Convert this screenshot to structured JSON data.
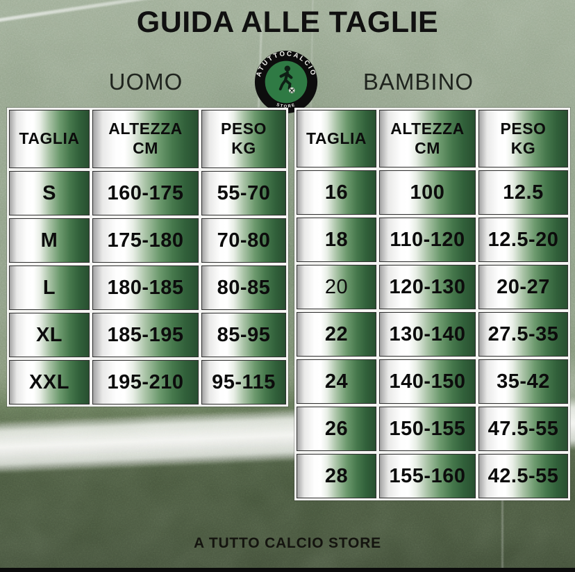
{
  "title": "GUIDA ALLE TAGLIE",
  "footer": "A TUTTO CALCIO STORE",
  "sections": {
    "uomo": {
      "label": "UOMO"
    },
    "bambino": {
      "label": "BAMBINO"
    }
  },
  "logo": {
    "ring_text_top": "ATUTTOCALCIO",
    "ring_text_bottom": "STORE",
    "icon": "soccer-player-icon",
    "ring_color": "#0d0d0d",
    "inner_color": "#2f7a44",
    "text_color": "#f5f5f0"
  },
  "tables": {
    "uomo": {
      "headers": [
        [
          "TAGLIA"
        ],
        [
          "ALTEZZA",
          "CM"
        ],
        [
          "PESO",
          "KG"
        ]
      ],
      "rows": [
        {
          "cells": [
            "S",
            "160-175",
            "55-70"
          ]
        },
        {
          "cells": [
            "M",
            "175-180",
            "70-80"
          ]
        },
        {
          "cells": [
            "L",
            "180-185",
            "80-85"
          ]
        },
        {
          "cells": [
            "XL",
            "185-195",
            "85-95"
          ]
        },
        {
          "cells": [
            "XXL",
            "195-210",
            "95-115"
          ]
        }
      ]
    },
    "bambino": {
      "headers": [
        [
          "TAGLIA"
        ],
        [
          "ALTEZZA",
          "CM"
        ],
        [
          "PESO",
          "KG"
        ]
      ],
      "rows": [
        {
          "cells": [
            "16",
            "100",
            "12.5"
          ]
        },
        {
          "cells": [
            "18",
            "110-120",
            "12.5-20"
          ]
        },
        {
          "cells": [
            "20",
            "120-130",
            "20-27"
          ],
          "light_cols": [
            0
          ]
        },
        {
          "cells": [
            "22",
            "130-140",
            "27.5-35"
          ]
        },
        {
          "cells": [
            "24",
            "140-150",
            "35-42"
          ]
        },
        {
          "cells": [
            "26",
            "150-155",
            "47.5-55"
          ]
        },
        {
          "cells": [
            "28",
            "155-160",
            "42.5-55"
          ]
        }
      ]
    }
  },
  "colors": {
    "cell_gradient_left": "#a4a4a4",
    "cell_gradient_mid": "#ffffff",
    "cell_gradient_right": "#284f30",
    "grid_line": "#f4f4f2",
    "field_light": "#90a088",
    "field_dark": "#46543c",
    "field_line_white": "#f3f6f0",
    "text_black": "#101010"
  }
}
